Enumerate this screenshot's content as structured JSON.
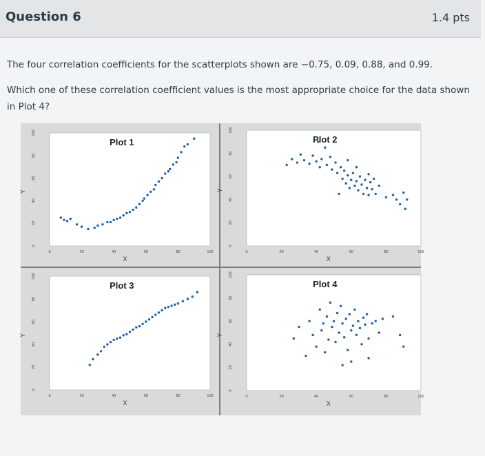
{
  "question": {
    "title": "Question 6",
    "points": "1.4 pts",
    "text": "The four correlation coefficients for the scatterplots shown are −0.75, 0.09, 0.88, and 0.99.",
    "prompt": "Which one of these correlation coefficient values is the most appropriate choice for the data shown in Plot 4?"
  },
  "chart_data": [
    {
      "type": "scatter",
      "title": "Plot 1",
      "xlabel": "X",
      "ylabel": "Y",
      "xlim": [
        0,
        100
      ],
      "ylim": [
        0,
        100
      ],
      "x_ticks": [
        "0",
        "20",
        "40",
        "60",
        "80",
        "100"
      ],
      "y_ticks": [
        "0",
        "20",
        "40",
        "60",
        "80",
        "100"
      ],
      "point_color": "#1f5fa8",
      "points": [
        [
          7,
          25
        ],
        [
          9,
          23
        ],
        [
          11,
          22
        ],
        [
          13,
          24
        ],
        [
          17,
          19
        ],
        [
          20,
          17
        ],
        [
          24,
          15
        ],
        [
          28,
          16
        ],
        [
          30,
          18
        ],
        [
          33,
          19
        ],
        [
          36,
          21
        ],
        [
          38,
          21
        ],
        [
          40,
          23
        ],
        [
          42,
          24
        ],
        [
          44,
          25
        ],
        [
          46,
          27
        ],
        [
          48,
          29
        ],
        [
          50,
          30
        ],
        [
          52,
          32
        ],
        [
          54,
          34
        ],
        [
          56,
          37
        ],
        [
          58,
          40
        ],
        [
          59,
          42
        ],
        [
          61,
          45
        ],
        [
          63,
          48
        ],
        [
          65,
          50
        ],
        [
          66,
          54
        ],
        [
          68,
          57
        ],
        [
          70,
          60
        ],
        [
          72,
          64
        ],
        [
          74,
          66
        ],
        [
          75,
          68
        ],
        [
          77,
          72
        ],
        [
          79,
          74
        ],
        [
          80,
          78
        ],
        [
          82,
          83
        ],
        [
          84,
          88
        ],
        [
          86,
          90
        ],
        [
          90,
          95
        ]
      ]
    },
    {
      "type": "scatter",
      "title": "Plot 2",
      "xlabel": "X",
      "ylabel": "Y",
      "xlim": [
        0,
        100
      ],
      "ylim": [
        0,
        100
      ],
      "x_ticks": [
        "0",
        "20",
        "40",
        "60",
        "80",
        "100"
      ],
      "y_ticks": [
        "0",
        "20",
        "40",
        "60",
        "80",
        "100"
      ],
      "point_color": "#1f5fa8",
      "points": [
        [
          23,
          70
        ],
        [
          26,
          75
        ],
        [
          29,
          72
        ],
        [
          31,
          79
        ],
        [
          33,
          74
        ],
        [
          36,
          71
        ],
        [
          38,
          78
        ],
        [
          40,
          73
        ],
        [
          42,
          68
        ],
        [
          43,
          75
        ],
        [
          45,
          85
        ],
        [
          46,
          70
        ],
        [
          48,
          77
        ],
        [
          49,
          66
        ],
        [
          51,
          72
        ],
        [
          52,
          63
        ],
        [
          54,
          68
        ],
        [
          55,
          58
        ],
        [
          56,
          65
        ],
        [
          57,
          54
        ],
        [
          58,
          61
        ],
        [
          59,
          50
        ],
        [
          60,
          57
        ],
        [
          61,
          63
        ],
        [
          62,
          52
        ],
        [
          63,
          56
        ],
        [
          64,
          48
        ],
        [
          65,
          60
        ],
        [
          66,
          53
        ],
        [
          67,
          45
        ],
        [
          68,
          57
        ],
        [
          69,
          50
        ],
        [
          70,
          44
        ],
        [
          71,
          55
        ],
        [
          72,
          49
        ],
        [
          73,
          58
        ],
        [
          74,
          45
        ],
        [
          76,
          52
        ],
        [
          80,
          42
        ],
        [
          84,
          44
        ],
        [
          86,
          40
        ],
        [
          88,
          36
        ],
        [
          90,
          46
        ],
        [
          91,
          32
        ],
        [
          92,
          40
        ],
        [
          53,
          45
        ],
        [
          41,
          90
        ],
        [
          58,
          74
        ],
        [
          63,
          68
        ],
        [
          70,
          62
        ]
      ]
    },
    {
      "type": "scatter",
      "title": "Plot 3",
      "xlabel": "X",
      "ylabel": "Y",
      "xlim": [
        0,
        100
      ],
      "ylim": [
        0,
        100
      ],
      "x_ticks": [
        "0",
        "20",
        "40",
        "60",
        "80",
        "100"
      ],
      "y_ticks": [
        "0",
        "20",
        "40",
        "60",
        "80",
        "100"
      ],
      "point_color": "#1f5fa8",
      "points": [
        [
          25,
          22
        ],
        [
          27,
          27
        ],
        [
          30,
          31
        ],
        [
          32,
          34
        ],
        [
          34,
          38
        ],
        [
          36,
          40
        ],
        [
          38,
          42
        ],
        [
          40,
          44
        ],
        [
          42,
          45
        ],
        [
          44,
          46
        ],
        [
          46,
          48
        ],
        [
          48,
          49
        ],
        [
          50,
          51
        ],
        [
          52,
          53
        ],
        [
          54,
          55
        ],
        [
          56,
          56
        ],
        [
          58,
          58
        ],
        [
          60,
          60
        ],
        [
          62,
          62
        ],
        [
          64,
          64
        ],
        [
          66,
          66
        ],
        [
          68,
          68
        ],
        [
          70,
          70
        ],
        [
          72,
          72
        ],
        [
          74,
          73
        ],
        [
          76,
          74
        ],
        [
          78,
          75
        ],
        [
          80,
          76
        ],
        [
          83,
          78
        ],
        [
          86,
          80
        ],
        [
          89,
          82
        ],
        [
          92,
          86
        ]
      ]
    },
    {
      "type": "scatter",
      "title": "Plot 4",
      "xlabel": "X",
      "ylabel": "Y",
      "xlim": [
        0,
        100
      ],
      "ylim": [
        0,
        100
      ],
      "x_ticks": [
        "0",
        "20",
        "40",
        "60",
        "80",
        "100"
      ],
      "y_ticks": [
        "0",
        "20",
        "40",
        "60",
        "80",
        "100"
      ],
      "point_color": "#1f5fa8",
      "points": [
        [
          27,
          45
        ],
        [
          30,
          55
        ],
        [
          34,
          30
        ],
        [
          36,
          60
        ],
        [
          38,
          48
        ],
        [
          40,
          38
        ],
        [
          42,
          70
        ],
        [
          43,
          52
        ],
        [
          44,
          58
        ],
        [
          45,
          33
        ],
        [
          46,
          64
        ],
        [
          47,
          44
        ],
        [
          48,
          76
        ],
        [
          49,
          55
        ],
        [
          50,
          60
        ],
        [
          51,
          42
        ],
        [
          52,
          67
        ],
        [
          53,
          50
        ],
        [
          54,
          73
        ],
        [
          55,
          58
        ],
        [
          56,
          46
        ],
        [
          57,
          62
        ],
        [
          58,
          35
        ],
        [
          59,
          66
        ],
        [
          60,
          52
        ],
        [
          61,
          56
        ],
        [
          62,
          70
        ],
        [
          63,
          48
        ],
        [
          64,
          60
        ],
        [
          65,
          54
        ],
        [
          66,
          40
        ],
        [
          67,
          63
        ],
        [
          68,
          57
        ],
        [
          69,
          66
        ],
        [
          70,
          45
        ],
        [
          72,
          58
        ],
        [
          74,
          60
        ],
        [
          76,
          50
        ],
        [
          78,
          62
        ],
        [
          84,
          64
        ],
        [
          88,
          48
        ],
        [
          90,
          38
        ],
        [
          70,
          28
        ],
        [
          55,
          22
        ],
        [
          60,
          25
        ]
      ]
    }
  ]
}
